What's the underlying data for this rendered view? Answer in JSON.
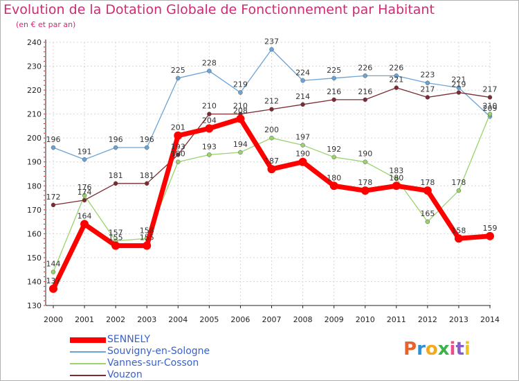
{
  "title": "Evolution de la Dotation Globale de Fonctionnement par Habitant",
  "subtitle": "(en € et par an)",
  "logo": {
    "text": "Proxiti",
    "letters": [
      {
        "ch": "P",
        "color": "#e8622a"
      },
      {
        "ch": "r",
        "color": "#2f8fd6"
      },
      {
        "ch": "o",
        "color": "#f2a91e"
      },
      {
        "ch": "x",
        "color": "#3db14a"
      },
      {
        "ch": "i",
        "color": "#e84e8a"
      },
      {
        "ch": "t",
        "color": "#8a5cc8"
      },
      {
        "ch": "i",
        "color": "#f2c21e"
      }
    ]
  },
  "chart_data": {
    "type": "line",
    "title": "Evolution de la Dotation Globale de Fonctionnement par Habitant",
    "subtitle": "(en € et par an)",
    "x": [
      2000,
      2001,
      2002,
      2003,
      2004,
      2005,
      2006,
      2007,
      2008,
      2009,
      2010,
      2011,
      2012,
      2013,
      2014
    ],
    "ylim": [
      130,
      240
    ],
    "yticks": [
      130,
      140,
      150,
      160,
      170,
      180,
      190,
      200,
      210,
      220,
      230,
      240
    ],
    "grid": true,
    "legend_position": "bottom-left",
    "series": [
      {
        "name": "SENNELY",
        "color": "#ff0000",
        "values": [
          137,
          164,
          155,
          155,
          201,
          204,
          208,
          187,
          190,
          180,
          178,
          180,
          178,
          158,
          159
        ]
      },
      {
        "name": "Souvigny-en-Sologne",
        "color": "#6ba3d6",
        "values": [
          196,
          191,
          196,
          196,
          225,
          228,
          219,
          237,
          224,
          225,
          226,
          226,
          223,
          221,
          209
        ]
      },
      {
        "name": "Vannes-sur-Cosson",
        "color": "#99d36b",
        "values": [
          144,
          176,
          157,
          158,
          190,
          193,
          194,
          200,
          197,
          192,
          190,
          183,
          165,
          178,
          210
        ]
      },
      {
        "name": "Vouzon",
        "color": "#7b2b32",
        "values": [
          172,
          174,
          181,
          181,
          193,
          210,
          210,
          212,
          214,
          216,
          216,
          221,
          217,
          219,
          217
        ]
      }
    ]
  }
}
